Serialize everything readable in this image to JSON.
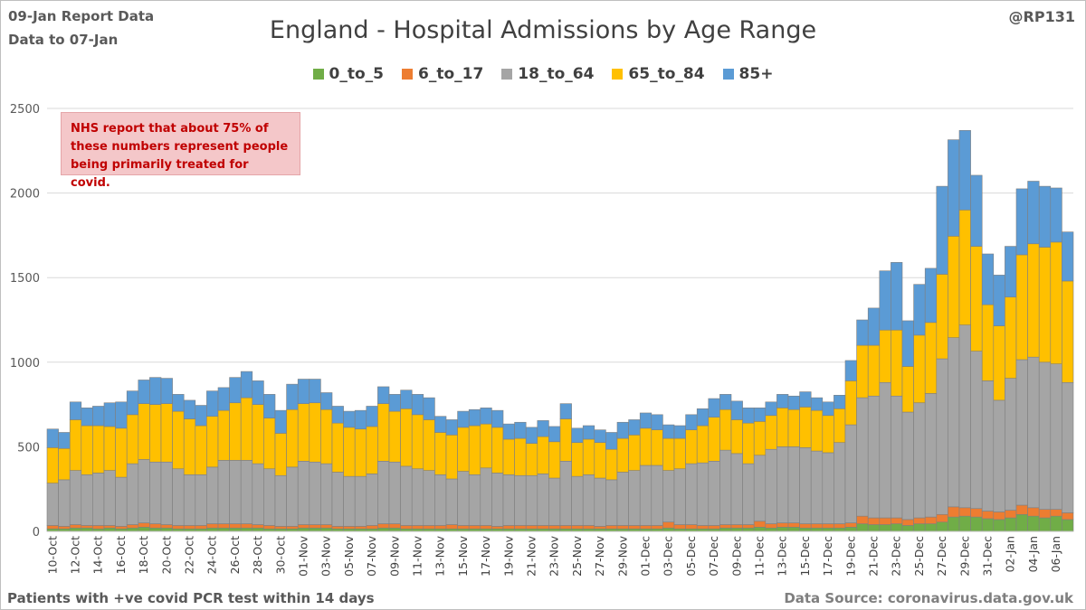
{
  "header": {
    "report_line": "09-Jan Report Data",
    "data_line": "Data to 07-Jan",
    "handle": "@RP131"
  },
  "note": "NHS report that about 75% of these numbers represent people being primarily treated for covid.",
  "footer": {
    "left": "Patients with  +ve covid PCR test within 14 days",
    "right": "Data Source: coronavirus.data.gov.uk"
  },
  "colors": {
    "0_to_5": "#70ad47",
    "6_to_17": "#ed7d31",
    "18_to_64": "#a5a5a5",
    "65_to_84": "#ffc000",
    "85+": "#5b9bd5",
    "grid": "#d9d9d9",
    "bar_border": "#7f7f7f"
  },
  "chart_data": {
    "type": "bar",
    "stacked": true,
    "title": "England - Hospital Admissions by Age Range",
    "xlabel": "",
    "ylabel": "",
    "ylim": [
      0,
      2500
    ],
    "yticks": [
      0,
      500,
      1000,
      1500,
      2000,
      2500
    ],
    "grid": true,
    "legend_position": "top",
    "categories": [
      "10-Oct",
      "11-Oct",
      "12-Oct",
      "13-Oct",
      "14-Oct",
      "15-Oct",
      "16-Oct",
      "17-Oct",
      "18-Oct",
      "19-Oct",
      "20-Oct",
      "21-Oct",
      "22-Oct",
      "23-Oct",
      "24-Oct",
      "25-Oct",
      "26-Oct",
      "27-Oct",
      "28-Oct",
      "29-Oct",
      "30-Oct",
      "31-Oct",
      "01-Nov",
      "02-Nov",
      "03-Nov",
      "04-Nov",
      "05-Nov",
      "06-Nov",
      "07-Nov",
      "08-Nov",
      "09-Nov",
      "10-Nov",
      "11-Nov",
      "12-Nov",
      "13-Nov",
      "14-Nov",
      "15-Nov",
      "16-Nov",
      "17-Nov",
      "18-Nov",
      "19-Nov",
      "20-Nov",
      "21-Nov",
      "22-Nov",
      "23-Nov",
      "24-Nov",
      "25-Nov",
      "26-Nov",
      "27-Nov",
      "28-Nov",
      "29-Nov",
      "30-Nov",
      "01-Dec",
      "02-Dec",
      "03-Dec",
      "04-Dec",
      "05-Dec",
      "06-Dec",
      "07-Dec",
      "08-Dec",
      "09-Dec",
      "10-Dec",
      "11-Dec",
      "12-Dec",
      "13-Dec",
      "14-Dec",
      "15-Dec",
      "16-Dec",
      "17-Dec",
      "18-Dec",
      "19-Dec",
      "20-Dec",
      "21-Dec",
      "22-Dec",
      "23-Dec",
      "24-Dec",
      "25-Dec",
      "26-Dec",
      "27-Dec",
      "28-Dec",
      "29-Dec",
      "30-Dec",
      "31-Dec",
      "01-Jan",
      "02-Jan",
      "03-Jan",
      "04-Jan",
      "05-Jan",
      "06-Jan",
      "07-Jan"
    ],
    "x_tick_labels": [
      "10-Oct",
      "12-Oct",
      "14-Oct",
      "16-Oct",
      "18-Oct",
      "20-Oct",
      "22-Oct",
      "24-Oct",
      "26-Oct",
      "28-Oct",
      "30-Oct",
      "01-Nov",
      "03-Nov",
      "05-Nov",
      "07-Nov",
      "09-Nov",
      "11-Nov",
      "13-Nov",
      "15-Nov",
      "17-Nov",
      "19-Nov",
      "21-Nov",
      "23-Nov",
      "25-Nov",
      "27-Nov",
      "29-Nov",
      "01-Dec",
      "03-Dec",
      "05-Dec",
      "07-Dec",
      "09-Dec",
      "11-Dec",
      "13-Dec",
      "15-Dec",
      "17-Dec",
      "19-Dec",
      "21-Dec",
      "23-Dec",
      "25-Dec",
      "27-Dec",
      "29-Dec",
      "31-Dec",
      "02-Jan",
      "04-Jan",
      "06-Jan"
    ],
    "series": [
      {
        "name": "0_to_5",
        "values": [
          15,
          15,
          20,
          20,
          15,
          20,
          15,
          20,
          25,
          20,
          20,
          15,
          15,
          15,
          20,
          20,
          20,
          20,
          20,
          15,
          15,
          15,
          20,
          20,
          20,
          15,
          15,
          15,
          15,
          20,
          20,
          15,
          15,
          15,
          15,
          15,
          15,
          15,
          15,
          15,
          15,
          15,
          15,
          15,
          15,
          15,
          15,
          15,
          15,
          15,
          15,
          15,
          15,
          15,
          20,
          15,
          15,
          15,
          15,
          20,
          20,
          20,
          25,
          20,
          25,
          25,
          20,
          20,
          20,
          20,
          25,
          45,
          40,
          40,
          45,
          35,
          45,
          45,
          55,
          85,
          90,
          85,
          75,
          70,
          80,
          100,
          90,
          80,
          90,
          70
        ]
      },
      {
        "name": "6_to_17",
        "values": [
          20,
          15,
          20,
          15,
          20,
          15,
          15,
          20,
          25,
          25,
          20,
          20,
          20,
          20,
          25,
          25,
          25,
          25,
          20,
          20,
          15,
          15,
          20,
          20,
          20,
          15,
          15,
          15,
          20,
          25,
          25,
          20,
          20,
          20,
          20,
          25,
          20,
          20,
          20,
          15,
          20,
          20,
          20,
          20,
          20,
          20,
          20,
          20,
          15,
          20,
          20,
          20,
          20,
          20,
          35,
          25,
          25,
          20,
          20,
          20,
          20,
          20,
          35,
          25,
          25,
          25,
          25,
          25,
          25,
          25,
          25,
          45,
          40,
          40,
          35,
          35,
          35,
          40,
          45,
          60,
          50,
          50,
          45,
          45,
          45,
          55,
          50,
          50,
          40,
          40
        ]
      },
      {
        "name": "18_to_64",
        "values": [
          250,
          275,
          320,
          300,
          310,
          325,
          290,
          360,
          375,
          365,
          370,
          335,
          300,
          300,
          335,
          375,
          375,
          375,
          360,
          335,
          300,
          350,
          375,
          370,
          360,
          320,
          295,
          295,
          305,
          370,
          365,
          350,
          335,
          325,
          300,
          270,
          320,
          300,
          340,
          315,
          300,
          295,
          295,
          305,
          280,
          380,
          290,
          300,
          285,
          270,
          315,
          325,
          355,
          355,
          305,
          330,
          360,
          370,
          380,
          440,
          420,
          360,
          390,
          440,
          450,
          450,
          450,
          430,
          420,
          480,
          580,
          700,
          720,
          800,
          720,
          635,
          680,
          730,
          920,
          1000,
          1080,
          930,
          770,
          660,
          780,
          860,
          890,
          870,
          860,
          770
        ]
      },
      {
        "name": "65_to_84",
        "values": [
          210,
          185,
          300,
          290,
          280,
          260,
          290,
          290,
          330,
          340,
          345,
          340,
          330,
          290,
          300,
          295,
          340,
          370,
          350,
          300,
          250,
          340,
          340,
          350,
          320,
          290,
          290,
          280,
          280,
          340,
          300,
          340,
          320,
          300,
          250,
          260,
          260,
          290,
          260,
          270,
          210,
          220,
          190,
          220,
          215,
          250,
          200,
          210,
          210,
          180,
          200,
          210,
          220,
          210,
          190,
          180,
          200,
          220,
          260,
          240,
          200,
          240,
          200,
          200,
          230,
          220,
          240,
          240,
          220,
          200,
          260,
          310,
          300,
          310,
          390,
          270,
          400,
          420,
          500,
          600,
          680,
          620,
          450,
          440,
          480,
          620,
          670,
          680,
          720,
          600
        ]
      },
      {
        "name": "85+",
        "values": [
          110,
          95,
          105,
          105,
          115,
          140,
          155,
          140,
          140,
          160,
          150,
          100,
          110,
          120,
          150,
          135,
          150,
          155,
          140,
          140,
          135,
          150,
          145,
          140,
          100,
          100,
          95,
          110,
          120,
          100,
          100,
          110,
          120,
          130,
          95,
          90,
          95,
          95,
          95,
          100,
          90,
          95,
          95,
          95,
          90,
          90,
          85,
          80,
          75,
          100,
          95,
          90,
          90,
          90,
          80,
          75,
          90,
          100,
          110,
          90,
          110,
          90,
          80,
          80,
          80,
          80,
          90,
          75,
          80,
          80,
          120,
          150,
          220,
          350,
          400,
          270,
          300,
          320,
          520,
          570,
          470,
          420,
          300,
          300,
          300,
          390,
          370,
          360,
          320,
          290
        ]
      }
    ]
  }
}
